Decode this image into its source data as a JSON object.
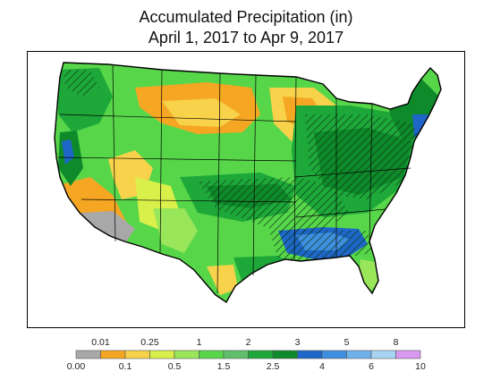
{
  "title": {
    "line1": "Accumulated Precipitation (in)",
    "line2": "April 1, 2017 to Apr 9, 2017"
  },
  "map": {
    "region": "Contiguous United States",
    "hatched_overlay": true
  },
  "legend": {
    "upper_labels": [
      "0.01",
      "0.25",
      "1",
      "2",
      "3",
      "5",
      "8"
    ],
    "lower_labels": [
      "0.00",
      "0.1",
      "0.5",
      "1.5",
      "2.5",
      "4",
      "6",
      "10"
    ],
    "bins": [
      {
        "range": "0.00-0.01",
        "color": "#a8a8a8"
      },
      {
        "range": "0.01-0.1",
        "color": "#f5a623"
      },
      {
        "range": "0.1-0.25",
        "color": "#f8d24a"
      },
      {
        "range": "0.25-0.5",
        "color": "#d9f04a"
      },
      {
        "range": "0.5-1",
        "color": "#9ae65a"
      },
      {
        "range": "1-1.5",
        "color": "#57d64a"
      },
      {
        "range": "1.5-2",
        "color": "#5fbf6a"
      },
      {
        "range": "2-2.5",
        "color": "#1ea83a"
      },
      {
        "range": "2.5-3",
        "color": "#0e8a2a"
      },
      {
        "range": "3-4",
        "color": "#1e66c8"
      },
      {
        "range": "4-5",
        "color": "#3f8fe0"
      },
      {
        "range": "5-6",
        "color": "#6fb2ea"
      },
      {
        "range": "6-8",
        "color": "#a6d4f2"
      },
      {
        "range": "8-10",
        "color": "#d89af0"
      }
    ]
  }
}
